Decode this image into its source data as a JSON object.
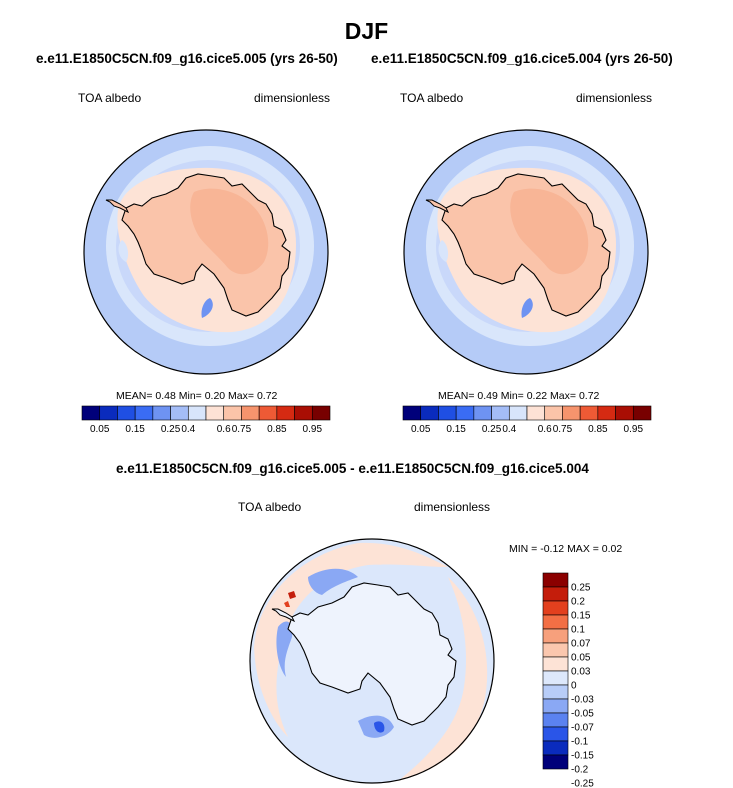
{
  "main_title": "DJF",
  "colors": {
    "absolute": [
      "#00007a",
      "#0a2bbd",
      "#1f4fe3",
      "#3a6cf4",
      "#6e93f2",
      "#a4bdf7",
      "#d8e5fb",
      "#fde2d5",
      "#fbc4a9",
      "#f6946d",
      "#ee5a35",
      "#d52a12",
      "#a90e04",
      "#780000"
    ],
    "difference": [
      "#00007a",
      "#0a2bbd",
      "#2a55e8",
      "#5b82f0",
      "#8aa8f4",
      "#b8cdf8",
      "#dde8fb",
      "#fde3d6",
      "#fbc7ae",
      "#f7a07c",
      "#f36f45",
      "#e3401e",
      "#c41d0b",
      "#8b0000"
    ],
    "ocean_outer": "#b5cbf7",
    "ocean_mid": "#d9e6fb",
    "ice_belt": "#fde3d6",
    "continent": "#fac4aa",
    "plateau": "#f7b393"
  },
  "chart_data": [
    {
      "type": "polar-map",
      "title": "e.e11.E1850C5CN.f09_g16.cice5.005 (yrs 26-50)",
      "variable": "TOA albedo",
      "units": "dimensionless",
      "stats": {
        "mean": "0.48",
        "min": "0.20",
        "max": "0.72"
      },
      "stats_line": "MEAN=   0.48   Min=   0.20   Max=   0.72",
      "colorbar_labels": [
        "0.05",
        "0.15",
        "0.25",
        "0.4",
        "0.6",
        "0.75",
        "0.85",
        "0.95"
      ]
    },
    {
      "type": "polar-map",
      "title": "e.e11.E1850C5CN.f09_g16.cice5.004 (yrs 26-50)",
      "variable": "TOA albedo",
      "units": "dimensionless",
      "stats": {
        "mean": "0.49",
        "min": "0.22",
        "max": "0.72"
      },
      "stats_line": "MEAN=   0.49   Min=   0.22   Max=   0.72",
      "colorbar_labels": [
        "0.05",
        "0.15",
        "0.25",
        "0.4",
        "0.6",
        "0.75",
        "0.85",
        "0.95"
      ]
    },
    {
      "type": "polar-map",
      "title": "e.e11.E1850C5CN.f09_g16.cice5.005 - e.e11.E1850C5CN.f09_g16.cice5.004",
      "variable": "TOA albedo",
      "units": "dimensionless",
      "stats": {
        "min": "-0.12",
        "max": "0.02"
      },
      "stats_line": "MIN =  -0.12 MAX =   0.02",
      "colorbar_labels": [
        "0.25",
        "0.2",
        "0.15",
        "0.1",
        "0.07",
        "0.05",
        "0.03",
        "0",
        "-0.03",
        "-0.05",
        "-0.07",
        "-0.1",
        "-0.15",
        "-0.2",
        "-0.25"
      ]
    }
  ]
}
